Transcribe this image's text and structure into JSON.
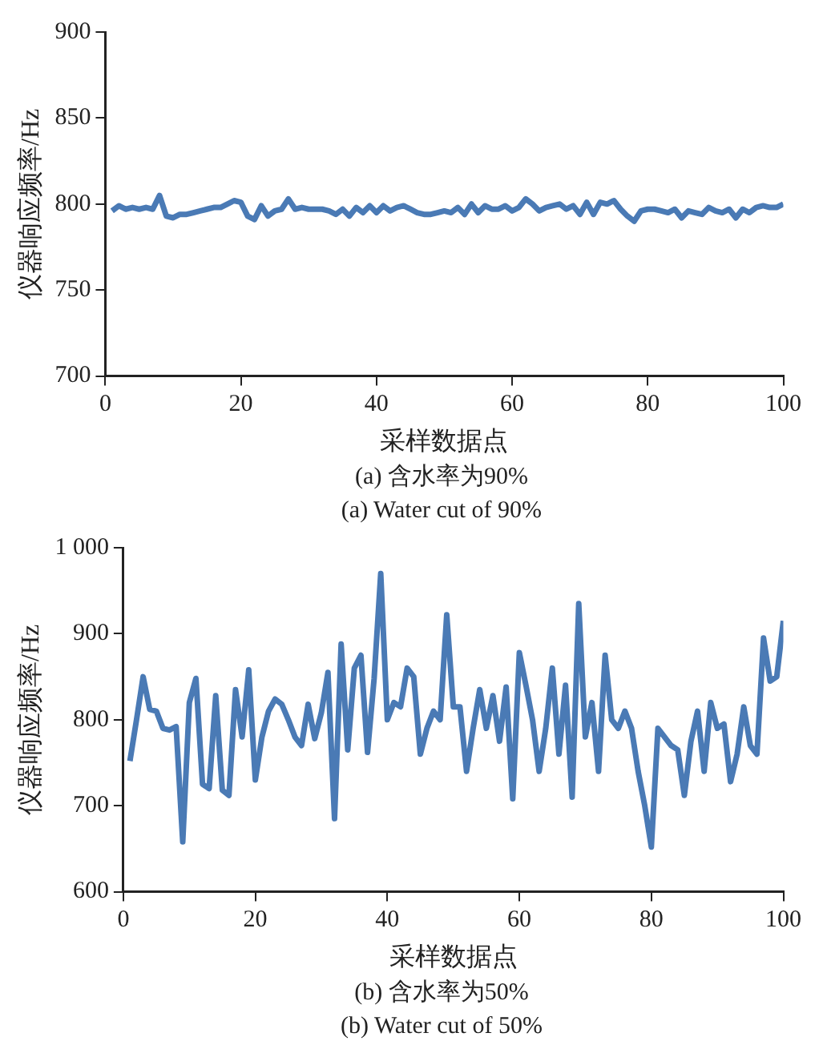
{
  "chart_data": [
    {
      "type": "line",
      "xlabel": "采样数据点",
      "ylabel": "仪器响应频率/Hz",
      "annotations": [
        "(a) 含水率为90%",
        "(a) Water cut of 90%"
      ],
      "grid": false,
      "legend": false,
      "marker": "none",
      "line_style": "solid",
      "x": [
        1,
        2,
        3,
        4,
        5,
        6,
        7,
        8,
        9,
        10,
        11,
        12,
        13,
        14,
        15,
        16,
        17,
        18,
        19,
        20,
        21,
        22,
        23,
        24,
        25,
        26,
        27,
        28,
        29,
        30,
        31,
        32,
        33,
        34,
        35,
        36,
        37,
        38,
        39,
        40,
        41,
        42,
        43,
        44,
        45,
        46,
        47,
        48,
        49,
        50,
        51,
        52,
        53,
        54,
        55,
        56,
        57,
        58,
        59,
        60,
        61,
        62,
        63,
        64,
        65,
        66,
        67,
        68,
        69,
        70,
        71,
        72,
        73,
        74,
        75,
        76,
        77,
        78,
        79,
        80,
        81,
        82,
        83,
        84,
        85,
        86,
        87,
        88,
        89,
        90,
        91,
        92,
        93,
        94,
        95,
        96,
        97,
        98,
        99,
        100
      ],
      "xlim": [
        0,
        100
      ],
      "xticks": [
        0,
        20,
        40,
        60,
        80,
        100
      ],
      "ylim": [
        700,
        900
      ],
      "yticks": [
        700,
        750,
        800,
        850,
        900
      ],
      "series": [
        {
          "color": "#4a7ab5",
          "values": [
            796,
            799,
            797,
            798,
            797,
            798,
            797,
            805,
            793,
            792,
            794,
            794,
            795,
            796,
            797,
            798,
            798,
            800,
            802,
            801,
            793,
            791,
            799,
            793,
            796,
            797,
            803,
            797,
            798,
            797,
            797,
            797,
            796,
            794,
            797,
            793,
            798,
            795,
            799,
            795,
            799,
            796,
            798,
            799,
            797,
            795,
            794,
            794,
            795,
            796,
            795,
            798,
            794,
            800,
            795,
            799,
            797,
            797,
            799,
            796,
            798,
            803,
            800,
            796,
            798,
            799,
            800,
            797,
            799,
            794,
            801,
            794,
            801,
            800,
            802,
            797,
            793,
            790,
            796,
            797,
            797,
            796,
            795,
            797,
            792,
            796,
            795,
            794,
            798,
            796,
            795,
            797,
            792,
            797,
            795,
            798,
            799,
            798,
            798,
            800
          ]
        }
      ]
    },
    {
      "type": "line",
      "xlabel": "采样数据点",
      "ylabel": "仪器响应频率/Hz",
      "annotations": [
        "(b) 含水率为50%",
        "(b) Water cut of 50%"
      ],
      "grid": false,
      "legend": false,
      "marker": "none",
      "line_style": "solid",
      "x": [
        1,
        2,
        3,
        4,
        5,
        6,
        7,
        8,
        9,
        10,
        11,
        12,
        13,
        14,
        15,
        16,
        17,
        18,
        19,
        20,
        21,
        22,
        23,
        24,
        25,
        26,
        27,
        28,
        29,
        30,
        31,
        32,
        33,
        34,
        35,
        36,
        37,
        38,
        39,
        40,
        41,
        42,
        43,
        44,
        45,
        46,
        47,
        48,
        49,
        50,
        51,
        52,
        53,
        54,
        55,
        56,
        57,
        58,
        59,
        60,
        61,
        62,
        63,
        64,
        65,
        66,
        67,
        68,
        69,
        70,
        71,
        72,
        73,
        74,
        75,
        76,
        77,
        78,
        79,
        80,
        81,
        82,
        83,
        84,
        85,
        86,
        87,
        88,
        89,
        90,
        91,
        92,
        93,
        94,
        95,
        96,
        97,
        98,
        99,
        100
      ],
      "xlim": [
        0,
        100
      ],
      "xticks": [
        0,
        20,
        40,
        60,
        80,
        100
      ],
      "ylim": [
        600,
        1000
      ],
      "yticks": [
        600,
        700,
        800,
        900,
        {
          "value": 1000,
          "label": "1 000"
        }
      ],
      "series": [
        {
          "color": "#4a7ab5",
          "values": [
            752,
            800,
            850,
            812,
            810,
            790,
            788,
            792,
            658,
            820,
            848,
            725,
            720,
            828,
            718,
            712,
            835,
            780,
            858,
            730,
            780,
            810,
            824,
            818,
            800,
            780,
            770,
            818,
            778,
            808,
            855,
            685,
            888,
            765,
            860,
            875,
            762,
            848,
            970,
            800,
            820,
            815,
            860,
            850,
            760,
            790,
            810,
            800,
            922,
            815,
            815,
            740,
            790,
            835,
            790,
            828,
            775,
            838,
            708,
            878,
            840,
            800,
            740,
            790,
            860,
            760,
            840,
            710,
            935,
            780,
            820,
            740,
            875,
            800,
            790,
            810,
            790,
            740,
            700,
            652,
            790,
            780,
            770,
            765,
            712,
            775,
            810,
            740,
            820,
            790,
            795,
            728,
            760,
            815,
            770,
            760,
            895,
            845,
            850,
            915
          ]
        }
      ]
    }
  ]
}
